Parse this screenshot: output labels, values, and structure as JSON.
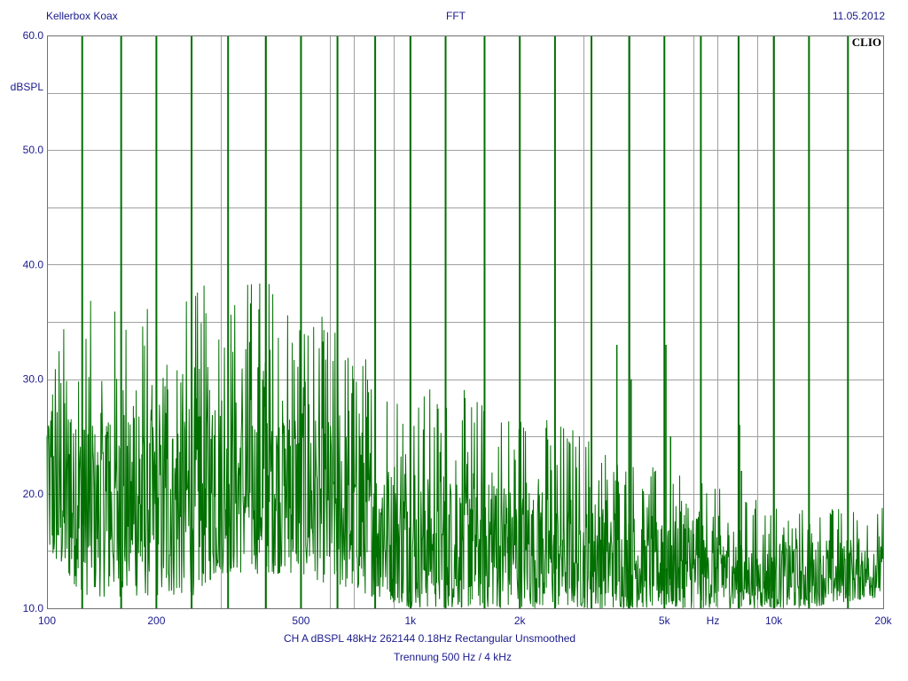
{
  "header": {
    "left": "Kellerbox Koax",
    "center": "FFT",
    "right": "11.05.2012"
  },
  "logo_text": "CLIO",
  "footer": {
    "params": "CH A   dBSPL   48kHz   262144   0.18Hz   Rectangular   Unsmoothed",
    "note": "Trennung 500 Hz / 4 kHz"
  },
  "colors": {
    "trace": "#007000",
    "grid": "#a0a0a0",
    "text": "#1a1a8c",
    "frame": "#707070"
  },
  "chart_data": {
    "type": "line",
    "title": "FFT",
    "ylabel": "dBSPL",
    "xlabel": "Hz",
    "xscale": "log",
    "xlim": [
      100,
      20000
    ],
    "ylim": [
      10,
      60
    ],
    "grid": true,
    "y_ticks": [
      {
        "value": 10,
        "label": "10.0"
      },
      {
        "value": 20,
        "label": "20.0"
      },
      {
        "value": 30,
        "label": "30.0"
      },
      {
        "value": 40,
        "label": "40.0"
      },
      {
        "value": 50,
        "label": "50.0"
      },
      {
        "value": 60,
        "label": "60.0"
      }
    ],
    "y_minor_ticks": [
      15,
      25,
      35,
      45,
      55
    ],
    "x_ticks": [
      {
        "value": 100,
        "label": "100"
      },
      {
        "value": 200,
        "label": "200"
      },
      {
        "value": 500,
        "label": "500"
      },
      {
        "value": 1000,
        "label": "1k"
      },
      {
        "value": 2000,
        "label": "2k"
      },
      {
        "value": 5000,
        "label": "5k"
      },
      {
        "value": 10000,
        "label": "10k"
      },
      {
        "value": 20000,
        "label": "20k"
      }
    ],
    "x_grid": [
      100,
      200,
      300,
      400,
      500,
      600,
      700,
      800,
      900,
      1000,
      2000,
      3000,
      4000,
      5000,
      6000,
      7000,
      8000,
      9000,
      10000,
      20000
    ],
    "series": [
      {
        "harmonic_lines_hz": [
          125,
          160,
          200,
          250,
          315,
          400,
          500,
          630,
          800,
          1000,
          1250,
          1600,
          2000,
          2500,
          3150,
          4000,
          5000,
          6300,
          8000,
          10000,
          12500,
          16000
        ],
        "harmonic_peak_db": 60,
        "noise_envelope": [
          {
            "hz": 100,
            "peak_db": 34,
            "floor_db": 14
          },
          {
            "hz": 130,
            "peak_db": 37,
            "floor_db": 11
          },
          {
            "hz": 200,
            "peak_db": 37,
            "floor_db": 11
          },
          {
            "hz": 250,
            "peak_db": 38,
            "floor_db": 11
          },
          {
            "hz": 300,
            "peak_db": 39,
            "floor_db": 13
          },
          {
            "hz": 400,
            "peak_db": 40,
            "floor_db": 13
          },
          {
            "hz": 500,
            "peak_db": 38,
            "floor_db": 13
          },
          {
            "hz": 600,
            "peak_db": 35,
            "floor_db": 12
          },
          {
            "hz": 800,
            "peak_db": 32,
            "floor_db": 11
          },
          {
            "hz": 1000,
            "peak_db": 30,
            "floor_db": 10
          },
          {
            "hz": 1500,
            "peak_db": 29,
            "floor_db": 10
          },
          {
            "hz": 2000,
            "peak_db": 28,
            "floor_db": 10
          },
          {
            "hz": 3000,
            "peak_db": 26,
            "floor_db": 10
          },
          {
            "hz": 5000,
            "peak_db": 22,
            "floor_db": 10
          },
          {
            "hz": 8000,
            "peak_db": 20,
            "floor_db": 10
          },
          {
            "hz": 12000,
            "peak_db": 19,
            "floor_db": 10
          },
          {
            "hz": 20000,
            "peak_db": 19,
            "floor_db": 11
          }
        ],
        "isolated_peaks": [
          {
            "hz": 3700,
            "db": 33
          },
          {
            "hz": 4050,
            "db": 30
          },
          {
            "hz": 5050,
            "db": 33
          },
          {
            "hz": 5200,
            "db": 25
          },
          {
            "hz": 8050,
            "db": 26
          },
          {
            "hz": 8150,
            "db": 22
          },
          {
            "hz": 16000,
            "db": 41
          }
        ]
      }
    ]
  }
}
